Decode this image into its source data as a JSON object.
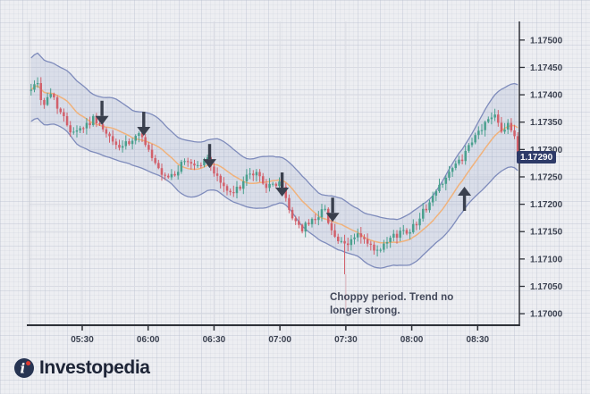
{
  "branding": {
    "logo_text": "Investopedia",
    "logo_icon": "investopedia-i-icon",
    "logo_circle_color": "#273452",
    "logo_dot_color": "#e03a30"
  },
  "annotation": {
    "line1": "Choppy period. Trend no",
    "line2": "longer strong."
  },
  "last_price": {
    "label": "1.17290",
    "value": 1.1729,
    "bg_color": "#2d3a68",
    "text_color": "#ffffff"
  },
  "colors": {
    "background": "#edeef2",
    "major_grid": "#d9dbe3",
    "band_fill": "#7c8cc0",
    "band_line": "#7e8bbb",
    "moving_average": "#f0b27c",
    "candle_up": "#4aa08e",
    "candle_down": "#d2606b",
    "axis_line": "#2e3138",
    "tick_text": "#3b4150",
    "arrow": "#3a404e"
  },
  "chart_data": {
    "type": "candlestick",
    "overlays": [
      "price-channel-band-upper",
      "price-channel-band-lower",
      "moving-average-midline"
    ],
    "grid": true,
    "legend": false,
    "x_axis": {
      "tick_labels": [
        "05:30",
        "06:00",
        "06:30",
        "07:00",
        "07:30",
        "08:00",
        "08:30"
      ],
      "tick_interval_minutes": 30,
      "visible_start": "05:06",
      "visible_end": "08:49"
    },
    "y_axis": {
      "tick_labels": [
        "1.17500",
        "1.17450",
        "1.17400",
        "1.17350",
        "1.17300",
        "1.17250",
        "1.17200",
        "1.17150",
        "1.17100",
        "1.17050",
        "1.17000"
      ],
      "tick_step": 0.0005,
      "range_top": 1.17534,
      "range_bottom": 1.16979
    },
    "candles_n": 150,
    "last_close": 1.1729,
    "price_path_anchors": [
      [
        "05:06",
        1.174
      ],
      [
        "05:09",
        1.17432
      ],
      [
        "05:12",
        1.1738
      ],
      [
        "05:16",
        1.17404
      ],
      [
        "05:21",
        1.1736
      ],
      [
        "05:25",
        1.17335
      ],
      [
        "05:30",
        1.1734
      ],
      [
        "05:36",
        1.17358
      ],
      [
        "05:40",
        1.1733
      ],
      [
        "05:46",
        1.17305
      ],
      [
        "05:52",
        1.1731
      ],
      [
        "05:57",
        1.1733
      ],
      [
        "06:02",
        1.1728
      ],
      [
        "06:07",
        1.17245
      ],
      [
        "06:12",
        1.17255
      ],
      [
        "06:17",
        1.1728
      ],
      [
        "06:23",
        1.1727
      ],
      [
        "06:27",
        1.17283
      ],
      [
        "06:32",
        1.17245
      ],
      [
        "06:38",
        1.17215
      ],
      [
        "06:44",
        1.17245
      ],
      [
        "06:49",
        1.17258
      ],
      [
        "06:55",
        1.1723
      ],
      [
        "07:00",
        1.17243
      ],
      [
        "07:05",
        1.1718
      ],
      [
        "07:10",
        1.17155
      ],
      [
        "07:15",
        1.1717
      ],
      [
        "07:20",
        1.17193
      ],
      [
        "07:25",
        1.1714
      ],
      [
        "07:30",
        1.1712
      ],
      [
        "07:35",
        1.17148
      ],
      [
        "07:40",
        1.17125
      ],
      [
        "07:45",
        1.1711
      ],
      [
        "07:50",
        1.17135
      ],
      [
        "07:55",
        1.1715
      ],
      [
        "08:00",
        1.17155
      ],
      [
        "08:05",
        1.17185
      ],
      [
        "08:10",
        1.17215
      ],
      [
        "08:15",
        1.1725
      ],
      [
        "08:20",
        1.1727
      ],
      [
        "08:25",
        1.17295
      ],
      [
        "08:30",
        1.1733
      ],
      [
        "08:35",
        1.17355
      ],
      [
        "08:38",
        1.17368
      ],
      [
        "08:41",
        1.17335
      ],
      [
        "08:44",
        1.1735
      ],
      [
        "08:47",
        1.17315
      ],
      [
        "08:49",
        1.1729
      ]
    ],
    "band_halfwidth_anchors": [
      [
        "05:06",
        0.00058
      ],
      [
        "05:40",
        0.00054
      ],
      [
        "06:10",
        0.0005
      ],
      [
        "06:40",
        0.00047
      ],
      [
        "07:05",
        0.00043
      ],
      [
        "07:30",
        0.00046
      ],
      [
        "07:55",
        0.00044
      ],
      [
        "08:10",
        0.00048
      ],
      [
        "08:25",
        0.0006
      ],
      [
        "08:40",
        0.00076
      ],
      [
        "08:49",
        0.00078
      ]
    ],
    "long_lower_wick": {
      "time": "07:30",
      "low": 1.17072
    },
    "arrows": [
      {
        "direction": "down",
        "time": "05:39",
        "price": 1.17345
      },
      {
        "direction": "down",
        "time": "05:58",
        "price": 1.17325
      },
      {
        "direction": "down",
        "time": "06:28",
        "price": 1.17266
      },
      {
        "direction": "down",
        "time": "07:01",
        "price": 1.17214
      },
      {
        "direction": "down",
        "time": "07:24",
        "price": 1.17168
      },
      {
        "direction": "up",
        "time": "08:24",
        "price": 1.17232
      }
    ]
  }
}
